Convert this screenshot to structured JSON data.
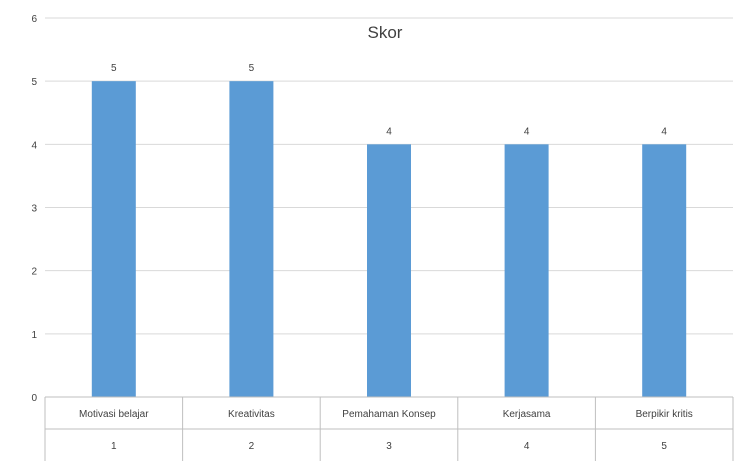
{
  "chart_data": {
    "type": "bar",
    "title": "Skor",
    "xlabel": "",
    "ylabel": "",
    "ylim": [
      0,
      6
    ],
    "yticks": [
      0,
      1,
      2,
      3,
      4,
      5,
      6
    ],
    "grid": true,
    "legend": "none",
    "categories": [
      {
        "label": "Motivasi belajar",
        "number": "1"
      },
      {
        "label": "Kreativitas",
        "number": "2"
      },
      {
        "label": "Pemahaman Konsep",
        "number": "3"
      },
      {
        "label": "Kerjasama",
        "number": "4"
      },
      {
        "label": "Berpikir kritis",
        "number": "5"
      }
    ],
    "values": [
      5,
      5,
      4,
      4,
      4
    ],
    "bar_color": "#5b9bd5",
    "grid_color": "#d9d9d9",
    "axis_color": "#bfbfbf",
    "text_color": "#404040"
  }
}
